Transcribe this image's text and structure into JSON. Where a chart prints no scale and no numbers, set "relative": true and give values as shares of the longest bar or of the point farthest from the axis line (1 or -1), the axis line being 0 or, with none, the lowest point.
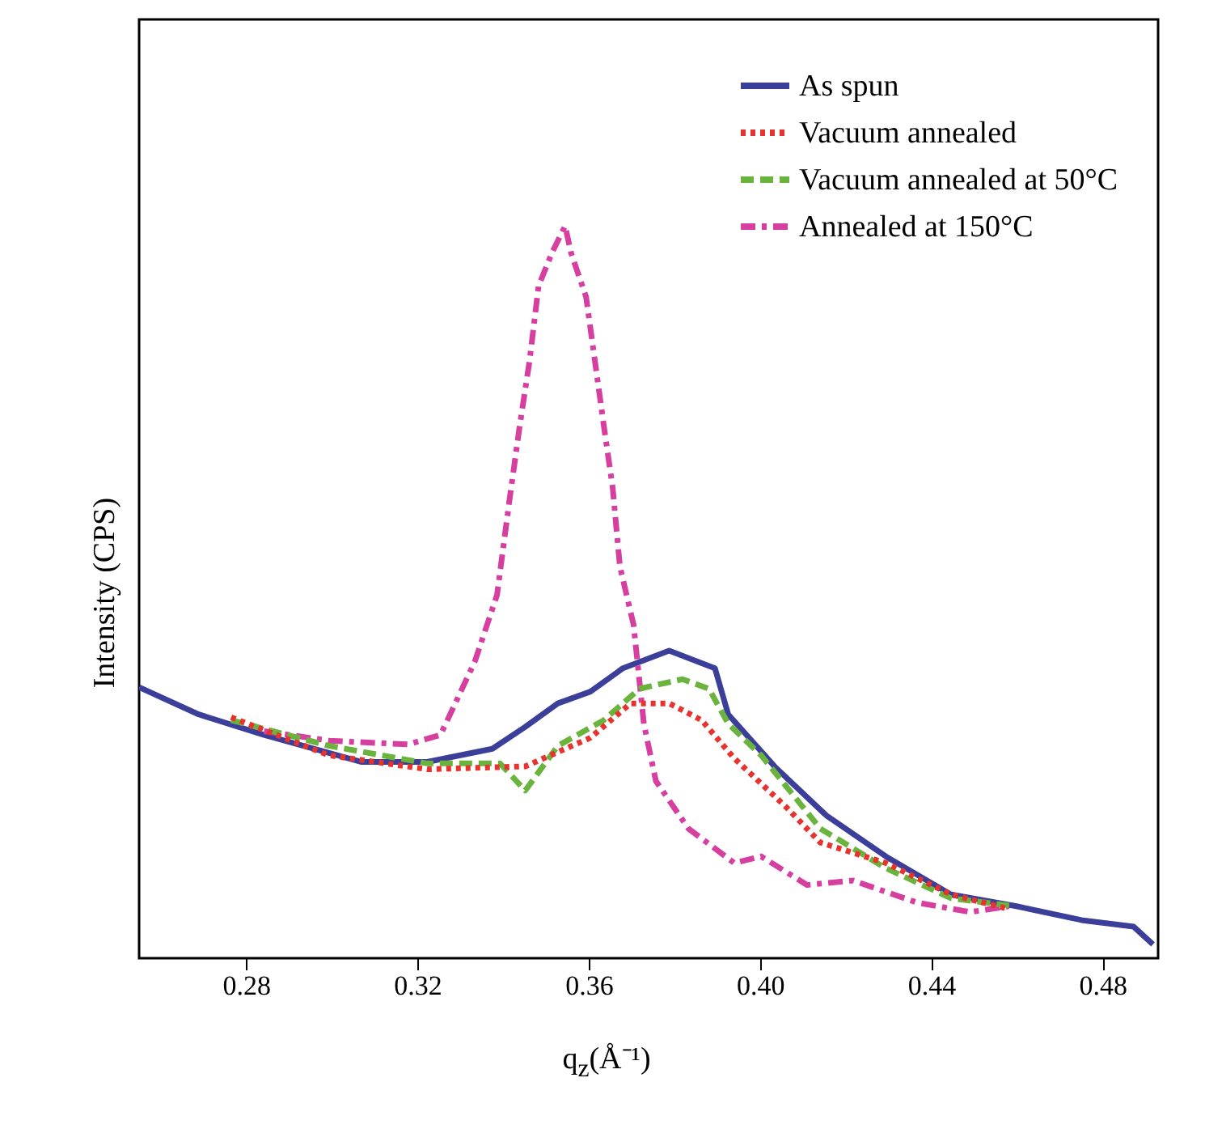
{
  "chart_data": {
    "type": "line",
    "relative": true,
    "xlabel": "q$_{z}$(Å⁻¹)",
    "ylabel": "Intensity (CPS)",
    "xlim": [
      0.255,
      0.493
    ],
    "xticks": [
      0.28,
      0.32,
      0.36,
      {
        "value": 0.4,
        "label": "0.40"
      },
      0.44,
      0.48
    ],
    "legend": "top right",
    "grid": false,
    "series": [
      {
        "name": "As spun",
        "color": "#3c3f9a",
        "line_style": "solid",
        "x": [
          0.255,
          0.2689,
          0.2842,
          0.307,
          0.3223,
          0.3375,
          0.3452,
          0.3528,
          0.3604,
          0.368,
          0.3788,
          0.3895,
          0.3926,
          0.4034,
          0.4155,
          0.4294,
          0.4446,
          0.4599,
          0.4751,
          0.4873,
          0.4918
        ],
        "values": [
          0.37,
          0.333,
          0.305,
          0.268,
          0.268,
          0.286,
          0.316,
          0.348,
          0.364,
          0.396,
          0.42,
          0.396,
          0.333,
          0.262,
          0.195,
          0.139,
          0.087,
          0.071,
          0.052,
          0.043,
          0.019
        ]
      },
      {
        "name": "Vacuum annealed",
        "color": "#e8322d",
        "line_style": "dotted",
        "x": [
          0.2765,
          0.2994,
          0.3223,
          0.3452,
          0.3604,
          0.3698,
          0.3788,
          0.3864,
          0.394,
          0.4062,
          0.4141,
          0.4294,
          0.4446,
          0.4582
        ],
        "values": [
          0.329,
          0.277,
          0.258,
          0.262,
          0.301,
          0.348,
          0.348,
          0.325,
          0.273,
          0.206,
          0.158,
          0.13,
          0.087,
          0.067
        ]
      },
      {
        "name": "Vacuum annealed at 50°C",
        "color": "#6ab43e",
        "line_style": "dashed",
        "x": [
          0.2765,
          0.2994,
          0.3223,
          0.3393,
          0.3452,
          0.3528,
          0.3635,
          0.3719,
          0.3819,
          0.3881,
          0.3926,
          0.4003,
          0.4141,
          0.4294,
          0.4446,
          0.4582
        ],
        "values": [
          0.325,
          0.29,
          0.266,
          0.266,
          0.229,
          0.29,
          0.325,
          0.368,
          0.381,
          0.368,
          0.32,
          0.277,
          0.177,
          0.123,
          0.082,
          0.072
        ]
      },
      {
        "name": "Annealed at 150°C",
        "color": "#d63fa0",
        "line_style": "dashdot",
        "x": [
          0.2842,
          0.2994,
          0.3178,
          0.3254,
          0.3334,
          0.3386,
          0.3414,
          0.3438,
          0.3462,
          0.3483,
          0.3514,
          0.3545,
          0.3559,
          0.3594,
          0.3611,
          0.3635,
          0.3656,
          0.3673,
          0.3705,
          0.3729,
          0.3757,
          0.3833,
          0.394,
          0.4003,
          0.411,
          0.4218,
          0.4367,
          0.4491,
          0.4582
        ],
        "values": [
          0.31,
          0.297,
          0.292,
          0.305,
          0.405,
          0.496,
          0.621,
          0.723,
          0.816,
          0.918,
          0.963,
          1,
          0.963,
          0.903,
          0.831,
          0.729,
          0.643,
          0.535,
          0.455,
          0.32,
          0.242,
          0.177,
          0.13,
          0.139,
          0.1,
          0.106,
          0.076,
          0.063,
          0.071
        ]
      }
    ]
  }
}
